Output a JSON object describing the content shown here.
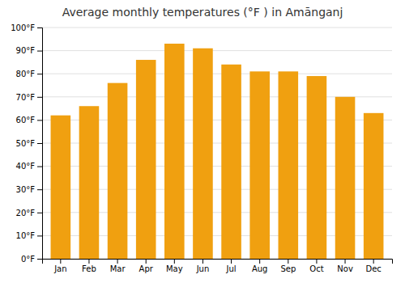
{
  "chart_data": {
    "type": "bar",
    "title": "Average monthly temperatures (°F ) in Amānganj",
    "categories": [
      "Jan",
      "Feb",
      "Mar",
      "Apr",
      "May",
      "Jun",
      "Jul",
      "Aug",
      "Sep",
      "Oct",
      "Nov",
      "Dec"
    ],
    "values": [
      62,
      66,
      76,
      86,
      93,
      91,
      84,
      81,
      81,
      79,
      70,
      63
    ],
    "color": "#F0A010",
    "ylim": [
      0,
      100
    ],
    "yticks": [
      {
        "value": 0,
        "label": "0°F"
      },
      {
        "value": 10,
        "label": "10°F"
      },
      {
        "value": 20,
        "label": "20°F"
      },
      {
        "value": 30,
        "label": "30°F"
      },
      {
        "value": 40,
        "label": "40°F"
      },
      {
        "value": 50,
        "label": "50°F"
      },
      {
        "value": 60,
        "label": "60°F"
      },
      {
        "value": 70,
        "label": "70°F"
      },
      {
        "value": 80,
        "label": "80°F"
      },
      {
        "value": 90,
        "label": "90°F"
      },
      {
        "value": 100,
        "label": "100°F"
      }
    ],
    "grid": true
  }
}
